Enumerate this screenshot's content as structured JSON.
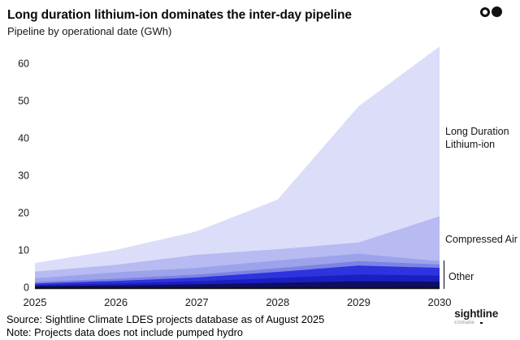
{
  "header": {
    "title": "Long duration lithium-ion dominates the inter-day pipeline",
    "subtitle": "Pipeline by operational date (GWh)"
  },
  "annotations": {
    "long_duration_line1": "Long Duration",
    "long_duration_line2": "Lithium-ion",
    "compressed_air": "Compressed Air",
    "other": "Other"
  },
  "footer": {
    "source": "Source: Sightline Climate LDES projects database as of August 2025",
    "note": "Note: Projects data does not include pumped hydro",
    "logo": {
      "name": "sightline",
      "sub": "climate"
    }
  },
  "colors": {
    "axis": "#111111",
    "background": "#ffffff",
    "brand_mark": "#111111"
  },
  "chart_data": {
    "type": "area",
    "stacked": true,
    "title": "Long duration lithium-ion dominates the inter-day pipeline",
    "subtitle": "Pipeline by operational date (GWh)",
    "xlabel": "",
    "ylabel": "GWh",
    "x": [
      2025,
      2026,
      2027,
      2028,
      2029,
      2030
    ],
    "xlim": [
      2025,
      2030
    ],
    "ylim": [
      0,
      65
    ],
    "yticks": [
      0,
      10,
      20,
      30,
      40,
      50,
      60
    ],
    "grid": false,
    "legend_position": "right-annotations",
    "series": [
      {
        "name": "Other (darkest navy)",
        "group": "Other",
        "color": "#0e0e62",
        "values": [
          0.3,
          0.5,
          0.8,
          1.2,
          1.6,
          1.5
        ]
      },
      {
        "name": "Other (deep blue)",
        "group": "Other",
        "color": "#1b1fc1",
        "values": [
          0.3,
          0.5,
          0.8,
          1.3,
          1.8,
          1.6
        ]
      },
      {
        "name": "Other (bright blue)",
        "group": "Other",
        "color": "#2d33dd",
        "values": [
          0.4,
          0.7,
          1.0,
          1.6,
          2.4,
          2.1
        ]
      },
      {
        "name": "Other (blue violet)",
        "group": "Other",
        "color": "#7c83e4",
        "values": [
          0.4,
          0.6,
          0.8,
          1.0,
          1.2,
          0.9
        ]
      },
      {
        "name": "Other (periwinkle)",
        "group": "Other",
        "color": "#9da3eb",
        "values": [
          1.0,
          1.7,
          1.8,
          2.1,
          2.0,
          0.9
        ]
      },
      {
        "name": "Compressed Air",
        "group": "Compressed Air",
        "color": "#b7bbf2",
        "values": [
          1.8,
          2.0,
          3.5,
          3.0,
          3.0,
          12.0
        ]
      },
      {
        "name": "Long Duration Lithium-ion",
        "group": "Long Duration Lithium-ion",
        "color": "#dcddf8",
        "values": [
          2.3,
          4.0,
          6.3,
          13.3,
          36.5,
          45.5
        ]
      }
    ],
    "totals": [
      6.5,
      10.0,
      15.0,
      23.5,
      48.5,
      64.5
    ]
  }
}
